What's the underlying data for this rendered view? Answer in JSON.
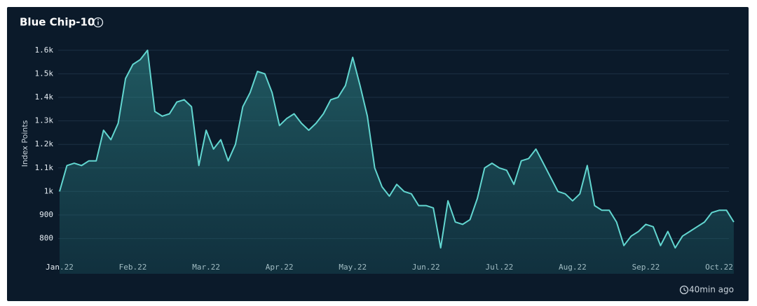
{
  "chart_data": {
    "type": "line",
    "title": "Blue Chip-10",
    "y_label": "Index Points",
    "updated": "40min ago",
    "color": "#62d6d0",
    "grid": true,
    "ylim": [
      650,
      1650
    ],
    "yticks": [
      800,
      900,
      {
        "value": 1000,
        "label": "1k"
      },
      {
        "value": 1100,
        "label": "1.1k"
      },
      {
        "value": 1200,
        "label": "1.2k"
      },
      {
        "value": 1300,
        "label": "1.3k"
      },
      {
        "value": 1400,
        "label": "1.4k"
      },
      {
        "value": 1500,
        "label": "1.5k"
      },
      {
        "value": 1600,
        "label": "1.6k"
      }
    ],
    "categories": [
      "Jan.22",
      null,
      null,
      null,
      null,
      null,
      null,
      null,
      null,
      null,
      "Feb.22",
      null,
      null,
      null,
      null,
      null,
      null,
      null,
      null,
      null,
      "Mar.22",
      null,
      null,
      null,
      null,
      null,
      null,
      null,
      null,
      null,
      "Apr.22",
      null,
      null,
      null,
      null,
      null,
      null,
      null,
      null,
      null,
      "May.22",
      null,
      null,
      null,
      null,
      null,
      null,
      null,
      null,
      null,
      "Jun.22",
      null,
      null,
      null,
      null,
      null,
      null,
      null,
      null,
      null,
      "Jul.22",
      null,
      null,
      null,
      null,
      null,
      null,
      null,
      null,
      null,
      "Aug.22",
      null,
      null,
      null,
      null,
      null,
      null,
      null,
      null,
      null,
      "Sep.22",
      null,
      null,
      null,
      null,
      null,
      null,
      null,
      null,
      null,
      "Oct.22",
      null,
      null
    ],
    "values": [
      1000,
      1110,
      1120,
      1110,
      1130,
      1130,
      1260,
      1220,
      1290,
      1480,
      1540,
      1560,
      1600,
      1340,
      1320,
      1330,
      1380,
      1390,
      1360,
      1110,
      1260,
      1180,
      1220,
      1130,
      1200,
      1360,
      1420,
      1510,
      1500,
      1420,
      1280,
      1310,
      1330,
      1290,
      1260,
      1290,
      1330,
      1390,
      1400,
      1450,
      1570,
      1450,
      1320,
      1100,
      1020,
      980,
      1030,
      1000,
      990,
      940,
      940,
      930,
      760,
      960,
      870,
      860,
      880,
      970,
      1100,
      1120,
      1100,
      1090,
      1030,
      1130,
      1140,
      1180,
      1120,
      1060,
      1000,
      990,
      960,
      990,
      1110,
      940,
      920,
      920,
      870,
      770,
      810,
      830,
      860,
      850,
      770,
      830,
      760,
      810,
      830,
      850,
      870,
      910,
      920,
      920,
      870
    ]
  }
}
